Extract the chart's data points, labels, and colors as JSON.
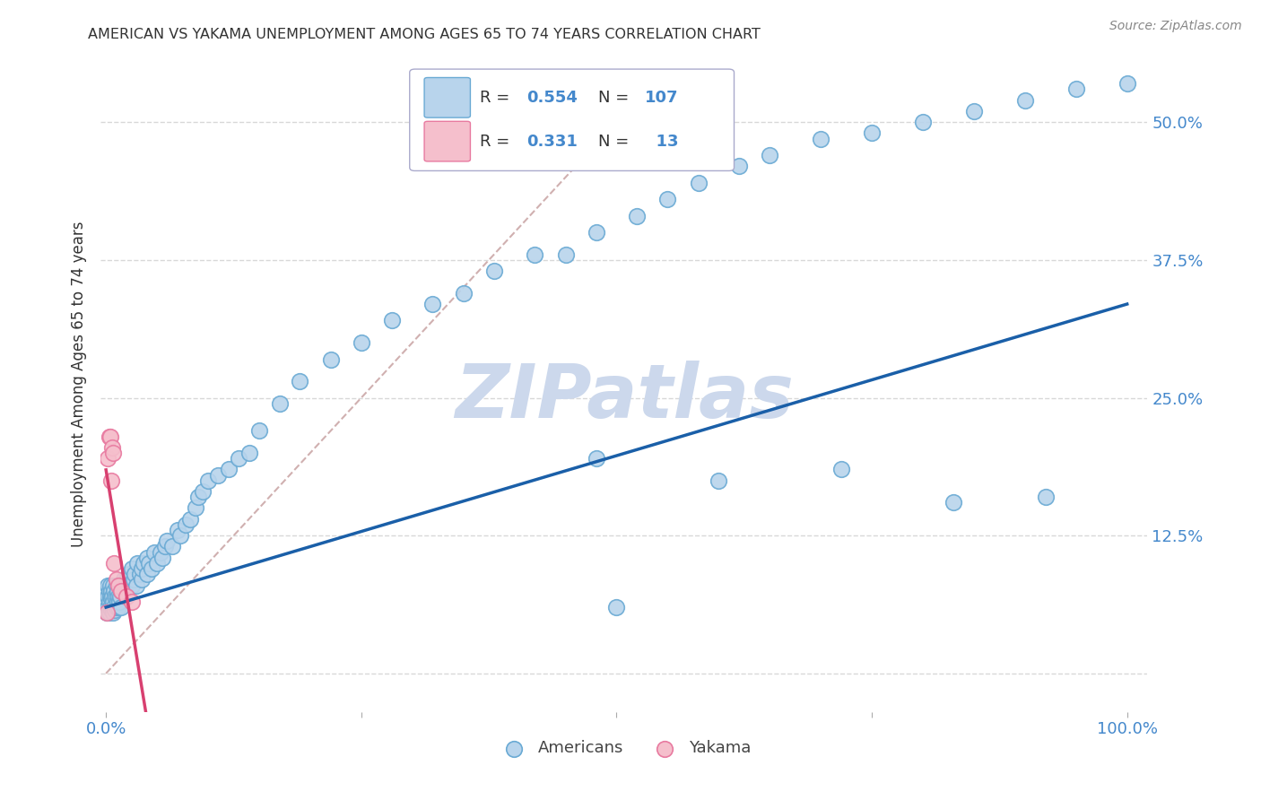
{
  "title": "AMERICAN VS YAKAMA UNEMPLOYMENT AMONG AGES 65 TO 74 YEARS CORRELATION CHART",
  "source": "Source: ZipAtlas.com",
  "ylabel": "Unemployment Among Ages 65 to 74 years",
  "xlim": [
    -0.005,
    1.02
  ],
  "ylim": [
    -0.035,
    0.56
  ],
  "xtick_positions": [
    0.0,
    0.25,
    0.5,
    0.75,
    1.0
  ],
  "xticklabels": [
    "0.0%",
    "",
    "",
    "",
    "100.0%"
  ],
  "ytick_positions": [
    0.0,
    0.125,
    0.25,
    0.375,
    0.5
  ],
  "yticklabels": [
    "",
    "12.5%",
    "25.0%",
    "37.5%",
    "50.0%"
  ],
  "american_face_color": "#b8d4ec",
  "american_edge_color": "#6aaad4",
  "yakama_face_color": "#f5bfcc",
  "yakama_edge_color": "#e87aa0",
  "regression_blue": "#1a5fa8",
  "regression_pink": "#d84070",
  "reference_line_color": "#d0b0b0",
  "watermark": "ZIPatlas",
  "watermark_color": "#ccd8ec",
  "background_color": "#ffffff",
  "grid_color": "#d8d8d8",
  "title_color": "#333333",
  "tick_color": "#4488cc",
  "source_color": "#888888",
  "american_R": 0.554,
  "american_N": 107,
  "yakama_R": 0.331,
  "yakama_N": 13,
  "am_x": [
    0.001,
    0.001,
    0.001,
    0.002,
    0.002,
    0.002,
    0.003,
    0.003,
    0.003,
    0.004,
    0.004,
    0.004,
    0.005,
    0.005,
    0.005,
    0.006,
    0.006,
    0.007,
    0.007,
    0.007,
    0.008,
    0.008,
    0.009,
    0.009,
    0.01,
    0.01,
    0.01,
    0.011,
    0.011,
    0.012,
    0.012,
    0.013,
    0.013,
    0.014,
    0.015,
    0.015,
    0.016,
    0.017,
    0.018,
    0.019,
    0.02,
    0.02,
    0.022,
    0.023,
    0.025,
    0.025,
    0.027,
    0.028,
    0.03,
    0.031,
    0.033,
    0.035,
    0.035,
    0.037,
    0.04,
    0.04,
    0.042,
    0.045,
    0.047,
    0.05,
    0.053,
    0.055,
    0.058,
    0.06,
    0.065,
    0.07,
    0.073,
    0.078,
    0.082,
    0.088,
    0.09,
    0.095,
    0.1,
    0.11,
    0.12,
    0.13,
    0.14,
    0.15,
    0.17,
    0.19,
    0.22,
    0.25,
    0.28,
    0.32,
    0.35,
    0.38,
    0.42,
    0.45,
    0.48,
    0.52,
    0.55,
    0.58,
    0.62,
    0.65,
    0.7,
    0.75,
    0.8,
    0.85,
    0.9,
    0.95,
    1.0,
    0.48,
    0.6,
    0.72,
    0.83,
    0.92,
    0.5
  ],
  "am_y": [
    0.055,
    0.065,
    0.075,
    0.06,
    0.07,
    0.08,
    0.055,
    0.065,
    0.075,
    0.06,
    0.07,
    0.08,
    0.058,
    0.068,
    0.075,
    0.06,
    0.07,
    0.055,
    0.065,
    0.08,
    0.06,
    0.075,
    0.058,
    0.07,
    0.06,
    0.07,
    0.08,
    0.065,
    0.075,
    0.06,
    0.07,
    0.065,
    0.08,
    0.07,
    0.06,
    0.075,
    0.08,
    0.085,
    0.075,
    0.08,
    0.07,
    0.085,
    0.08,
    0.09,
    0.08,
    0.095,
    0.085,
    0.09,
    0.08,
    0.1,
    0.09,
    0.085,
    0.095,
    0.1,
    0.09,
    0.105,
    0.1,
    0.095,
    0.11,
    0.1,
    0.11,
    0.105,
    0.115,
    0.12,
    0.115,
    0.13,
    0.125,
    0.135,
    0.14,
    0.15,
    0.16,
    0.165,
    0.175,
    0.18,
    0.185,
    0.195,
    0.2,
    0.22,
    0.245,
    0.265,
    0.285,
    0.3,
    0.32,
    0.335,
    0.345,
    0.365,
    0.38,
    0.38,
    0.4,
    0.415,
    0.43,
    0.445,
    0.46,
    0.47,
    0.485,
    0.49,
    0.5,
    0.51,
    0.52,
    0.53,
    0.535,
    0.195,
    0.175,
    0.185,
    0.155,
    0.16,
    0.06
  ],
  "yk_x": [
    0.001,
    0.002,
    0.003,
    0.004,
    0.005,
    0.006,
    0.007,
    0.008,
    0.01,
    0.012,
    0.015,
    0.02,
    0.025
  ],
  "yk_y": [
    0.055,
    0.195,
    0.215,
    0.215,
    0.175,
    0.205,
    0.2,
    0.1,
    0.085,
    0.08,
    0.075,
    0.07,
    0.065
  ]
}
